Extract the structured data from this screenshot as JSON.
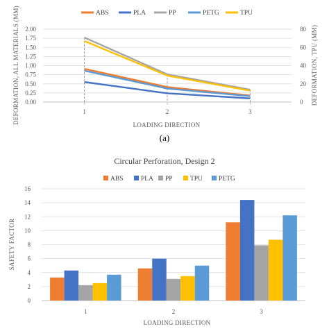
{
  "figure": {
    "caption_a": "(a)"
  },
  "chart_data": [
    {
      "type": "line",
      "title": "",
      "xlabel": "Loading Direction",
      "ylabel": "Deformation, All Materials (mm)",
      "y2label": "Deformation, TPU (mm)",
      "categories": [
        "1",
        "2",
        "3"
      ],
      "ylim": [
        0,
        2.0
      ],
      "yticks": [
        "0.00",
        "0.25",
        "0.50",
        "0.75",
        "1.00",
        "1.25",
        "1.50",
        "1.75",
        "2.00"
      ],
      "y2lim": [
        0,
        80
      ],
      "y2ticks": [
        "0",
        "20",
        "40",
        "60",
        "80"
      ],
      "grid": true,
      "legend": "top",
      "series": [
        {
          "name": "ABS",
          "color": "#ED7D31",
          "axis": "left",
          "values": [
            0.91,
            0.41,
            0.18
          ]
        },
        {
          "name": "PLA",
          "color": "#4472C4",
          "axis": "left",
          "values": [
            0.55,
            0.24,
            0.1
          ]
        },
        {
          "name": "PP",
          "color": "#A5A5A5",
          "axis": "left",
          "values": [
            1.77,
            0.76,
            0.34
          ]
        },
        {
          "name": "PETG",
          "color": "#5B9BD5",
          "axis": "left",
          "values": [
            0.86,
            0.37,
            0.16
          ]
        },
        {
          "name": "TPU",
          "color": "#FFC000",
          "axis": "right",
          "values": [
            67,
            29,
            12.5
          ]
        }
      ]
    },
    {
      "type": "bar",
      "title": "Circular Perforation, Design 2",
      "xlabel": "Loading Direction",
      "ylabel": "Safety Factor",
      "categories": [
        "1",
        "2",
        "3"
      ],
      "ylim": [
        0,
        16
      ],
      "yticks": [
        "0",
        "2",
        "4",
        "6",
        "8",
        "10",
        "12",
        "14",
        "16"
      ],
      "grid": true,
      "legend": "top-right",
      "series": [
        {
          "name": "ABS",
          "color": "#ED7D31",
          "values": [
            3.3,
            4.6,
            11.2
          ]
        },
        {
          "name": "PLA",
          "color": "#4472C4",
          "values": [
            4.3,
            6.0,
            14.4
          ]
        },
        {
          "name": "PP",
          "color": "#A5A5A5",
          "values": [
            2.2,
            3.1,
            7.9
          ]
        },
        {
          "name": "TPU",
          "color": "#FFC000",
          "values": [
            2.5,
            3.5,
            8.7
          ]
        },
        {
          "name": "PETG",
          "color": "#5B9BD5",
          "values": [
            3.7,
            5.0,
            12.2
          ]
        }
      ]
    }
  ]
}
